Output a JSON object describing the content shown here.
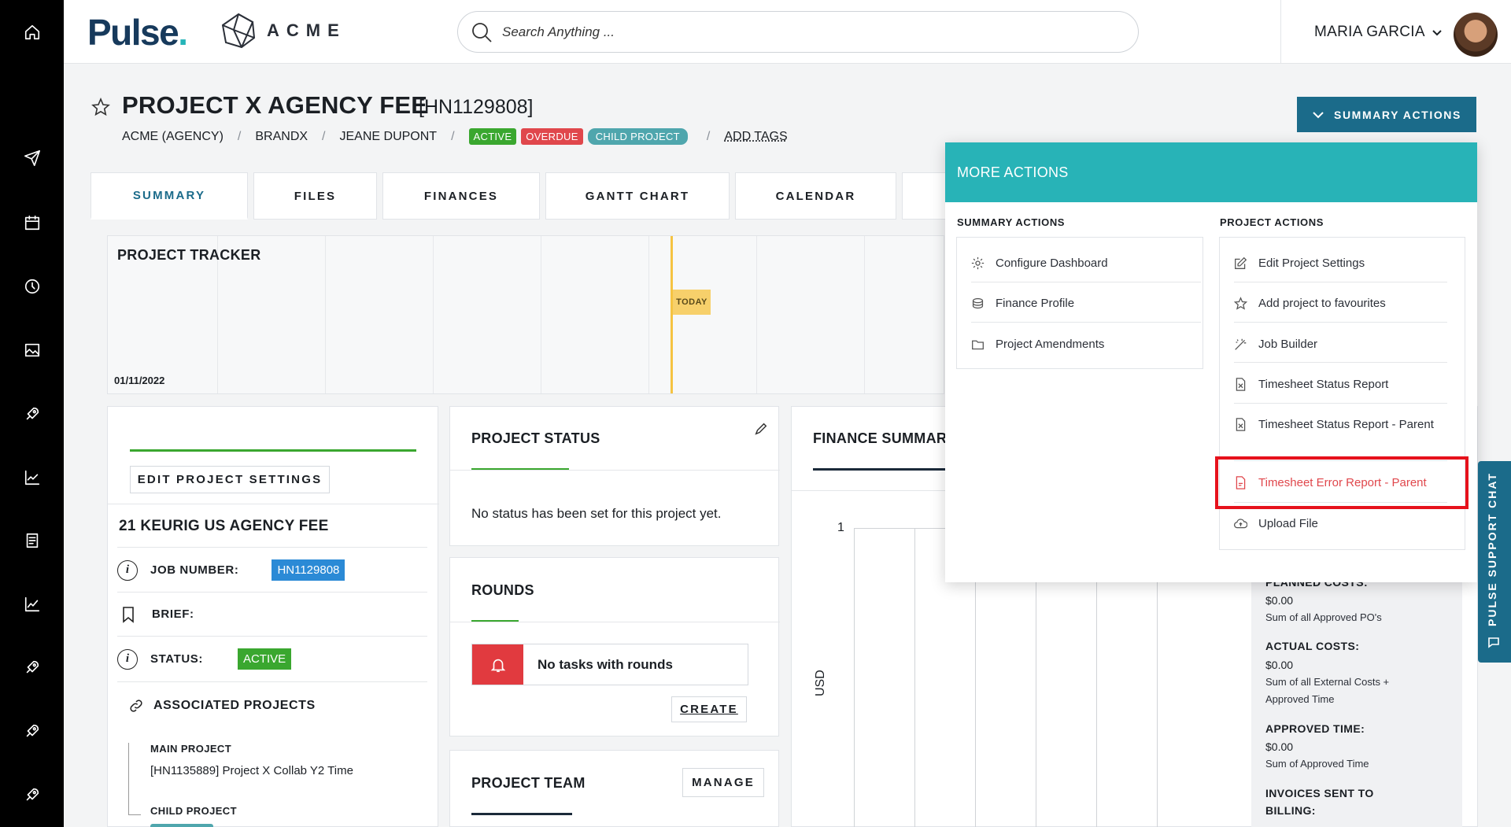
{
  "brand": {
    "pulse": "Pulse",
    "pulse_dot": ".",
    "client_logo": "ACME"
  },
  "search": {
    "placeholder": "Search Anything ..."
  },
  "user": {
    "name": "MARIA GARCIA"
  },
  "project": {
    "title": "PROJECT X AGENCY FEE",
    "code": "[HN1129808]",
    "breadcrumb": [
      "ACME (AGENCY)",
      "BRANDX",
      "JEANE DUPONT"
    ],
    "badges": {
      "active": "ACTIVE",
      "overdue": "OVERDUE",
      "child": "CHILD PROJECT"
    },
    "add_tags": "ADD TAGS"
  },
  "summary_actions_label": "SUMMARY ACTIONS",
  "tabs": [
    "SUMMARY",
    "FILES",
    "FINANCES",
    "GANTT CHART",
    "CALENDAR"
  ],
  "tracker": {
    "title": "PROJECT TRACKER",
    "start_date": "01/11/2022",
    "today_label": "TODAY"
  },
  "settings_card": {
    "edit_button": "EDIT PROJECT SETTINGS",
    "name": "21 KEURIG US AGENCY FEE",
    "job_number_label": "JOB NUMBER:",
    "job_number": "HN1129808",
    "brief_label": "BRIEF:",
    "status_label": "STATUS:",
    "status": "ACTIVE",
    "associated_label": "ASSOCIATED PROJECTS",
    "main_project_label": "MAIN PROJECT",
    "main_project": "[HN1135889] Project X Collab Y2 Time",
    "child_project_label": "CHILD PROJECT"
  },
  "status_card": {
    "title": "PROJECT STATUS",
    "message": "No status has been set for this project yet."
  },
  "rounds_card": {
    "title": "ROUNDS",
    "empty": "No tasks with rounds",
    "create": "CREATE"
  },
  "team_card": {
    "title": "PROJECT TEAM",
    "manage": "MANAGE"
  },
  "finance_card": {
    "title": "FINANCE SUMMARY",
    "y_tick": "1",
    "y_unit": "USD",
    "planned_label": "PLANNED COSTS:",
    "planned_value": "$0.00",
    "planned_note": "Sum of all Approved PO's",
    "actual_label": "ACTUAL COSTS:",
    "actual_value": "$0.00",
    "actual_note_1": "Sum of all External Costs +",
    "actual_note_2": "Approved Time",
    "approved_label": "APPROVED TIME:",
    "approved_value": "$0.00",
    "approved_note": "Sum of Approved Time",
    "invoices_label_1": "INVOICES SENT TO",
    "invoices_label_2": "BILLING:"
  },
  "more_actions": {
    "title": "MORE ACTIONS",
    "summary_title": "SUMMARY ACTIONS",
    "summary_items": [
      "Configure Dashboard",
      "Finance Profile",
      "Project Amendments"
    ],
    "project_title": "PROJECT ACTIONS",
    "project_items": [
      "Edit Project Settings",
      "Add project to favourites",
      "Job Builder",
      "Timesheet Status Report",
      "Timesheet Status Report - Parent",
      "Timesheet Error Report - Parent",
      "Upload File"
    ]
  },
  "support_chat": "PULSE SUPPORT CHAT",
  "colors": {
    "brand_navy": "#173a5c",
    "teal": "#28b3b7",
    "action_blue": "#1b6b8a",
    "green": "#3aa72f",
    "red": "#e0474c",
    "highlight": "#e6121c"
  }
}
